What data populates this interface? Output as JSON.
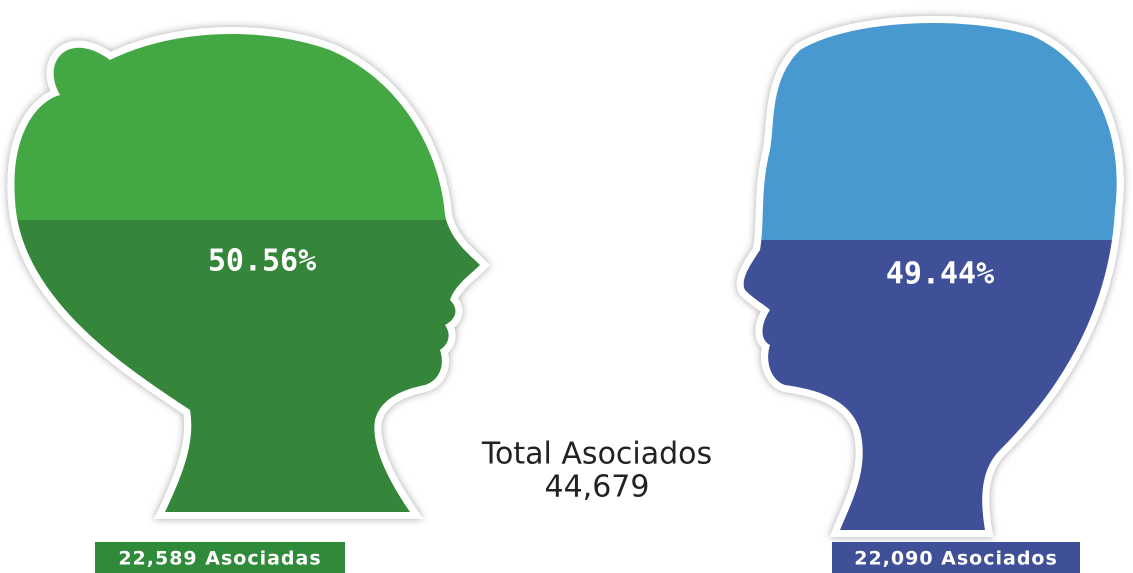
{
  "female": {
    "percent": "50.56%",
    "count": "22,589 Asociadas"
  },
  "male": {
    "percent": "49.44%",
    "count": "22,090 Asociados"
  },
  "total": {
    "label": "Total Asociados",
    "value": "44,679"
  }
}
